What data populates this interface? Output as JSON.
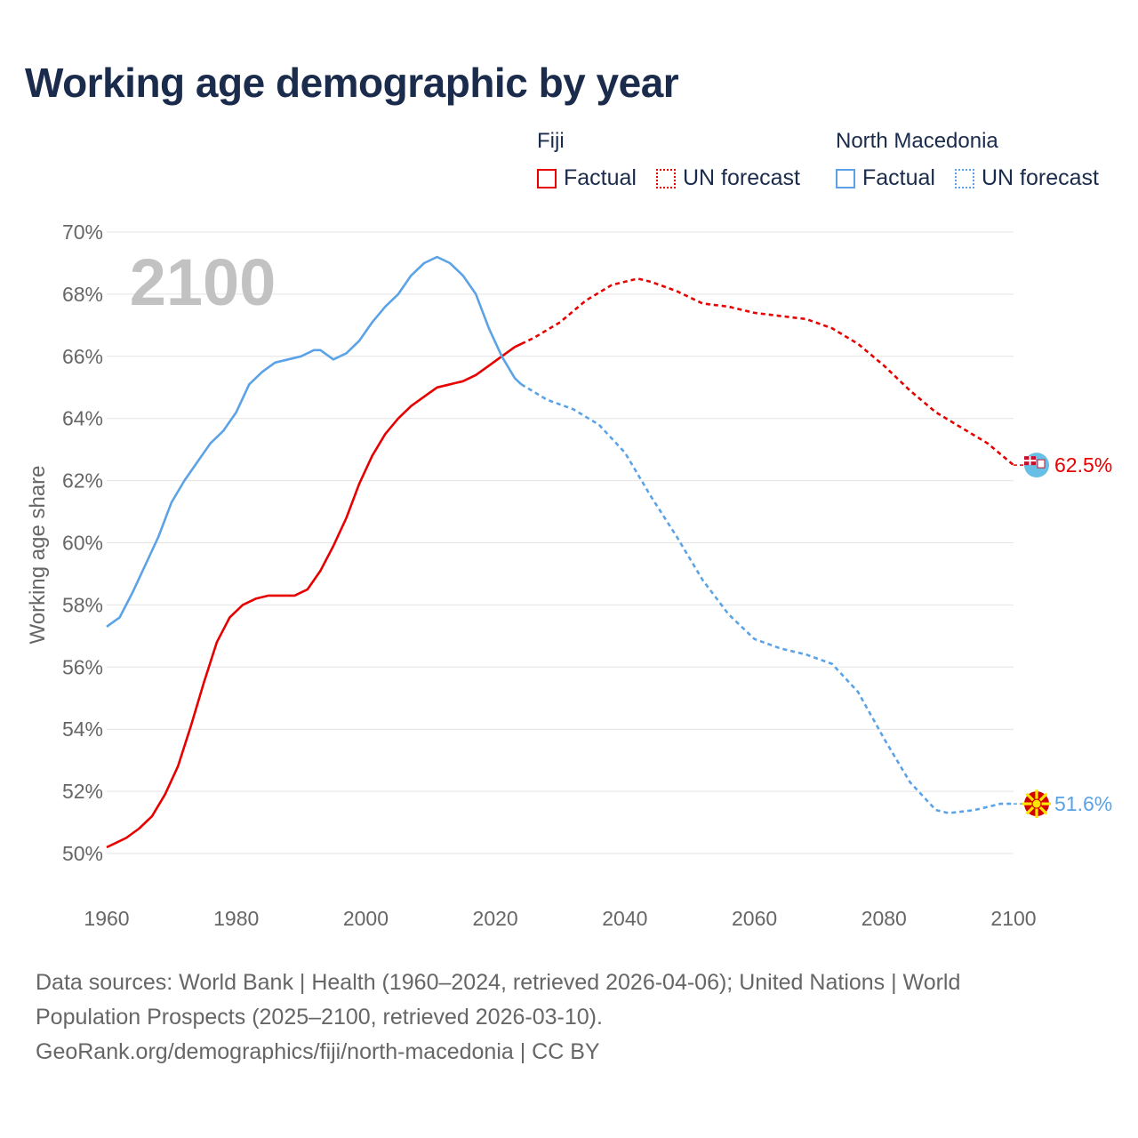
{
  "title": "Working age demographic by year",
  "legend": {
    "groups": [
      {
        "name": "Fiji",
        "color": "#e60000",
        "factual_label": "Factual",
        "forecast_label": "UN forecast"
      },
      {
        "name": "North Macedonia",
        "color": "#5ba3e6",
        "factual_label": "Factual",
        "forecast_label": "UN forecast"
      }
    ]
  },
  "chart_data": {
    "type": "line",
    "title": "Working age demographic by year",
    "ylabel": "Working age share",
    "xlabel": "",
    "current_year_label": "2100",
    "xlim": [
      1960,
      2100
    ],
    "ylim": [
      50,
      70
    ],
    "x_ticks": [
      1960,
      1980,
      2000,
      2020,
      2040,
      2060,
      2080,
      2100
    ],
    "y_ticks": [
      50,
      52,
      54,
      56,
      58,
      60,
      62,
      64,
      66,
      68,
      70
    ],
    "y_tick_format": "{v}%",
    "factual_end_year": 2024,
    "grid": true,
    "series": [
      {
        "name": "Fiji",
        "color": "#e60000",
        "end_label": "62.5%",
        "points": [
          [
            1960,
            50.2
          ],
          [
            1963,
            50.5
          ],
          [
            1965,
            50.8
          ],
          [
            1967,
            51.2
          ],
          [
            1969,
            51.9
          ],
          [
            1971,
            52.8
          ],
          [
            1973,
            54.1
          ],
          [
            1975,
            55.5
          ],
          [
            1977,
            56.8
          ],
          [
            1979,
            57.6
          ],
          [
            1981,
            58.0
          ],
          [
            1983,
            58.2
          ],
          [
            1985,
            58.3
          ],
          [
            1989,
            58.3
          ],
          [
            1991,
            58.5
          ],
          [
            1993,
            59.1
          ],
          [
            1995,
            59.9
          ],
          [
            1997,
            60.8
          ],
          [
            1999,
            61.9
          ],
          [
            2001,
            62.8
          ],
          [
            2003,
            63.5
          ],
          [
            2005,
            64.0
          ],
          [
            2007,
            64.4
          ],
          [
            2009,
            64.7
          ],
          [
            2011,
            65.0
          ],
          [
            2013,
            65.1
          ],
          [
            2015,
            65.2
          ],
          [
            2017,
            65.4
          ],
          [
            2019,
            65.7
          ],
          [
            2021,
            66.0
          ],
          [
            2023,
            66.3
          ],
          [
            2024,
            66.4
          ],
          [
            2026,
            66.6
          ],
          [
            2030,
            67.1
          ],
          [
            2034,
            67.8
          ],
          [
            2038,
            68.3
          ],
          [
            2042,
            68.5
          ],
          [
            2044,
            68.4
          ],
          [
            2048,
            68.1
          ],
          [
            2052,
            67.7
          ],
          [
            2056,
            67.6
          ],
          [
            2060,
            67.4
          ],
          [
            2064,
            67.3
          ],
          [
            2068,
            67.2
          ],
          [
            2072,
            66.9
          ],
          [
            2076,
            66.4
          ],
          [
            2080,
            65.7
          ],
          [
            2084,
            64.9
          ],
          [
            2088,
            64.2
          ],
          [
            2092,
            63.7
          ],
          [
            2096,
            63.2
          ],
          [
            2100,
            62.5
          ]
        ]
      },
      {
        "name": "North Macedonia",
        "color": "#5ba3e6",
        "end_label": "51.6%",
        "points": [
          [
            1960,
            57.3
          ],
          [
            1962,
            57.6
          ],
          [
            1964,
            58.4
          ],
          [
            1966,
            59.3
          ],
          [
            1968,
            60.2
          ],
          [
            1970,
            61.3
          ],
          [
            1972,
            62.0
          ],
          [
            1974,
            62.6
          ],
          [
            1976,
            63.2
          ],
          [
            1978,
            63.6
          ],
          [
            1980,
            64.2
          ],
          [
            1982,
            65.1
          ],
          [
            1984,
            65.5
          ],
          [
            1986,
            65.8
          ],
          [
            1988,
            65.9
          ],
          [
            1990,
            66.0
          ],
          [
            1992,
            66.2
          ],
          [
            1993,
            66.2
          ],
          [
            1995,
            65.9
          ],
          [
            1997,
            66.1
          ],
          [
            1999,
            66.5
          ],
          [
            2001,
            67.1
          ],
          [
            2003,
            67.6
          ],
          [
            2005,
            68.0
          ],
          [
            2007,
            68.6
          ],
          [
            2009,
            69.0
          ],
          [
            2011,
            69.2
          ],
          [
            2013,
            69.0
          ],
          [
            2015,
            68.6
          ],
          [
            2017,
            68.0
          ],
          [
            2019,
            66.9
          ],
          [
            2021,
            66.0
          ],
          [
            2023,
            65.3
          ],
          [
            2024,
            65.1
          ],
          [
            2028,
            64.6
          ],
          [
            2032,
            64.3
          ],
          [
            2036,
            63.8
          ],
          [
            2040,
            62.9
          ],
          [
            2044,
            61.5
          ],
          [
            2048,
            60.2
          ],
          [
            2052,
            58.8
          ],
          [
            2056,
            57.7
          ],
          [
            2060,
            56.9
          ],
          [
            2064,
            56.6
          ],
          [
            2068,
            56.4
          ],
          [
            2072,
            56.1
          ],
          [
            2076,
            55.2
          ],
          [
            2080,
            53.7
          ],
          [
            2084,
            52.3
          ],
          [
            2088,
            51.4
          ],
          [
            2090,
            51.3
          ],
          [
            2094,
            51.4
          ],
          [
            2098,
            51.6
          ],
          [
            2100,
            51.6
          ]
        ]
      }
    ]
  },
  "footer": {
    "line1": "Data sources: World Bank | Health (1960–2024, retrieved 2026-04-06); United Nations | World",
    "line2": "Population Prospects (2025–2100, retrieved 2026-03-10).",
    "line3": "GeoRank.org/demographics/fiji/north-macedonia | CC BY"
  }
}
